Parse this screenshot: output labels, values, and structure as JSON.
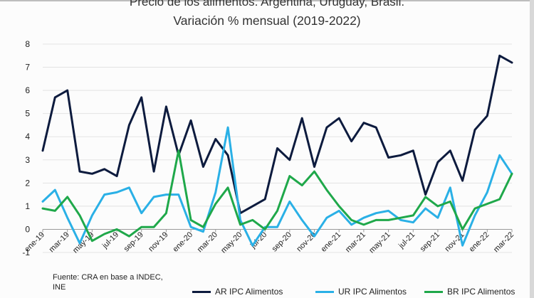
{
  "chart_data": {
    "type": "line",
    "title": "Precio de los alimentos. Argentina, Uruguay, Brasil.",
    "subtitle": "Variación % mensual (2019-2022)",
    "xlabel": "",
    "ylabel": "",
    "ylim": [
      -1,
      8
    ],
    "yticks": [
      -1,
      0,
      1,
      2,
      3,
      4,
      5,
      6,
      7,
      8
    ],
    "x_tick_labels": [
      "ene-19",
      "mar-19",
      "may-19",
      "jul-19",
      "sep-19",
      "nov-19",
      "ene-20",
      "mar-20",
      "may-20",
      "jul-20",
      "sep-20",
      "nov-20",
      "ene-21",
      "mar-21",
      "may-21",
      "jul-21",
      "sep-21",
      "nov-21",
      "ene-22",
      "mar-22"
    ],
    "grid": true,
    "legend_position": "bottom",
    "categories": [
      "ene-19",
      "feb-19",
      "mar-19",
      "abr-19",
      "may-19",
      "jun-19",
      "jul-19",
      "ago-19",
      "sep-19",
      "oct-19",
      "nov-19",
      "dic-19",
      "ene-20",
      "feb-20",
      "mar-20",
      "abr-20",
      "may-20",
      "jun-20",
      "jul-20",
      "ago-20",
      "sep-20",
      "oct-20",
      "nov-20",
      "dic-20",
      "ene-21",
      "feb-21",
      "mar-21",
      "abr-21",
      "may-21",
      "jun-21",
      "jul-21",
      "ago-21",
      "sep-21",
      "oct-21",
      "nov-21",
      "dic-21",
      "ene-22",
      "feb-22",
      "mar-22"
    ],
    "series": [
      {
        "name": "AR IPC Alimentos",
        "color": "#0d1b3e",
        "values": [
          3.4,
          5.7,
          6.0,
          2.5,
          2.4,
          2.6,
          2.3,
          4.5,
          5.7,
          2.5,
          5.3,
          3.2,
          4.7,
          2.7,
          3.9,
          3.2,
          0.7,
          1.0,
          1.3,
          3.5,
          3.0,
          4.8,
          2.7,
          4.4,
          4.8,
          3.8,
          4.6,
          4.4,
          3.1,
          3.2,
          3.4,
          1.5,
          2.9,
          3.4,
          2.1,
          4.3,
          4.9,
          7.5,
          7.2
        ]
      },
      {
        "name": "UR IPC Alimentos",
        "color": "#2ab0e6",
        "values": [
          1.2,
          1.7,
          0.5,
          -0.6,
          0.6,
          1.5,
          1.6,
          1.8,
          0.7,
          1.4,
          1.5,
          1.5,
          0.1,
          -0.1,
          1.6,
          4.4,
          0.4,
          -0.7,
          0.1,
          0.1,
          1.2,
          0.4,
          -0.3,
          0.5,
          0.8,
          0.2,
          0.5,
          0.7,
          0.8,
          0.4,
          0.3,
          0.9,
          0.5,
          1.8,
          -0.7,
          0.6,
          1.6,
          3.2,
          2.4
        ]
      },
      {
        "name": "BR IPC Alimentos",
        "color": "#1fa84a",
        "values": [
          0.9,
          0.8,
          1.4,
          0.6,
          -0.5,
          -0.2,
          0.0,
          -0.3,
          0.1,
          0.1,
          0.7,
          3.4,
          0.4,
          0.1,
          1.1,
          1.8,
          0.2,
          0.4,
          0.0,
          0.8,
          2.3,
          1.9,
          2.5,
          1.7,
          1.0,
          0.4,
          0.2,
          0.4,
          0.4,
          0.5,
          0.6,
          1.4,
          1.0,
          1.2,
          0.0,
          0.9,
          1.1,
          1.3,
          2.4
        ]
      }
    ],
    "source_note": "Fuente: CRA en base a INDEC, INE"
  }
}
